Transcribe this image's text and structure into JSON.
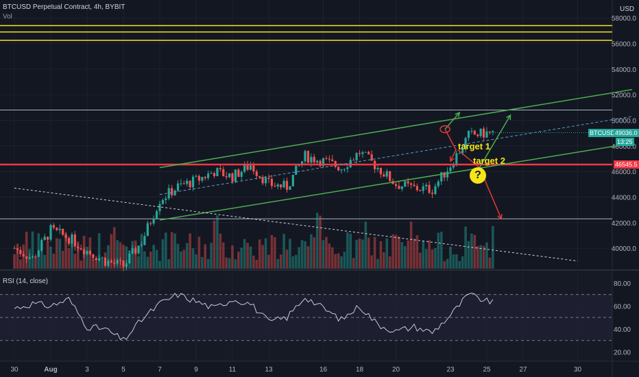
{
  "header": {
    "title": "BTCUSD Perpetual Contract, 4h, BYBIT",
    "volume_label": "Vol",
    "currency": "USD",
    "rsi_label": "RSI (14, close)"
  },
  "price_axis": {
    "ticks": [
      "58000.0",
      "56000.0",
      "54000.0",
      "52000.0",
      "50000.0",
      "48000.0",
      "46000.0",
      "44000.0",
      "42000.0",
      "40000.0"
    ],
    "tick_values": [
      58000,
      56000,
      54000,
      52000,
      50000,
      48000,
      46000,
      44000,
      42000,
      40000
    ],
    "range": [
      38400,
      59400
    ]
  },
  "rsi_axis": {
    "ticks": [
      "80.00",
      "60.00",
      "40.00",
      "20.00"
    ],
    "tick_values": [
      80,
      60,
      40,
      20
    ],
    "range": [
      12,
      90
    ],
    "bands": [
      70,
      50,
      30
    ]
  },
  "time_axis": {
    "ticks": [
      "30",
      "Aug",
      "3",
      "5",
      "7",
      "9",
      "11",
      "13",
      "16",
      "18",
      "20",
      "23",
      "25",
      "27",
      "30"
    ],
    "day_positions": [
      -1,
      1,
      3,
      5,
      7,
      9,
      11,
      13,
      16,
      18,
      20,
      23,
      25,
      27,
      30
    ]
  },
  "badges": {
    "last_symbol": "BTCUSD",
    "last_price": "49036.0",
    "countdown": "13:25",
    "level_price": "46545.5"
  },
  "annotations": {
    "target1": "target 1",
    "target2": "target 2",
    "question": "?"
  },
  "colors": {
    "background": "#131722",
    "up": "#26a69a",
    "down": "#ef5350",
    "channel": "#4caf50",
    "yellow_lines": "#f5e61a",
    "level_red": "#f23645",
    "rsi_line": "#c8cbd3",
    "rsi_band": "#7e57c2"
  },
  "chart_data": {
    "type": "candlestick",
    "title": "BTCUSD Perpetual Contract, 4h, BYBIT",
    "x_unit": "days (Aug 2021)",
    "price_range": [
      38400,
      59400
    ],
    "levels": {
      "resistance_yellow": [
        57400,
        56900,
        56250
      ],
      "horizontal_gray": [
        50800,
        42300
      ],
      "red_level": 46545.5
    },
    "channel": {
      "upper": [
        [
          7,
          46300
        ],
        [
          33,
          52400
        ]
      ],
      "lower": [
        [
          7,
          42200
        ],
        [
          33,
          48200
        ]
      ],
      "mid_dashed": [
        [
          7,
          44200
        ],
        [
          33,
          50300
        ]
      ]
    },
    "trendline_dashed": [
      [
        -1,
        44700
      ],
      [
        30,
        39000
      ]
    ],
    "anchors": [
      {
        "day": -1,
        "price": 40000
      },
      {
        "day": 0,
        "price": 39200
      },
      {
        "day": 1,
        "price": 41400
      },
      {
        "day": 2,
        "price": 40800
      },
      {
        "day": 3,
        "price": 39800
      },
      {
        "day": 4,
        "price": 39000
      },
      {
        "day": 5,
        "price": 38600
      },
      {
        "day": 6,
        "price": 40500
      },
      {
        "day": 7,
        "price": 43800
      },
      {
        "day": 8,
        "price": 44800
      },
      {
        "day": 9,
        "price": 45300
      },
      {
        "day": 10,
        "price": 46000
      },
      {
        "day": 11,
        "price": 45600
      },
      {
        "day": 12,
        "price": 46500
      },
      {
        "day": 13,
        "price": 45000
      },
      {
        "day": 14,
        "price": 44800
      },
      {
        "day": 15,
        "price": 47200
      },
      {
        "day": 16,
        "price": 46800
      },
      {
        "day": 17,
        "price": 46300
      },
      {
        "day": 18,
        "price": 47500
      },
      {
        "day": 19,
        "price": 46300
      },
      {
        "day": 20,
        "price": 45000
      },
      {
        "day": 21,
        "price": 44700
      },
      {
        "day": 22,
        "price": 44600
      },
      {
        "day": 23,
        "price": 46500
      },
      {
        "day": 24,
        "price": 48800
      },
      {
        "day": 25,
        "price": 49000
      }
    ],
    "last_price": 49036.0,
    "projections": [
      {
        "name": "target 1",
        "points": [
          [
            22.7,
            49300
          ],
          [
            23.3,
            47700
          ],
          [
            23.0,
            46800
          ]
        ]
      },
      {
        "name": "target 2",
        "points": [
          [
            23.4,
            47700
          ],
          [
            24.6,
            46300
          ],
          [
            25.8,
            42300
          ]
        ]
      },
      {
        "name": "up-1",
        "points": [
          [
            22.7,
            49300
          ],
          [
            23.5,
            50600
          ]
        ]
      },
      {
        "name": "up-2",
        "points": [
          [
            24.6,
            46300
          ],
          [
            26.3,
            50400
          ]
        ]
      }
    ],
    "rsi": {
      "range": [
        12,
        90
      ],
      "bands": [
        70,
        50,
        30
      ],
      "anchors": [
        {
          "day": -1,
          "value": 58
        },
        {
          "day": 0,
          "value": 62
        },
        {
          "day": 1,
          "value": 60
        },
        {
          "day": 2,
          "value": 66
        },
        {
          "day": 3,
          "value": 42
        },
        {
          "day": 4,
          "value": 40
        },
        {
          "day": 5,
          "value": 30
        },
        {
          "day": 6,
          "value": 48
        },
        {
          "day": 7,
          "value": 62
        },
        {
          "day": 8,
          "value": 70
        },
        {
          "day": 9,
          "value": 64
        },
        {
          "day": 10,
          "value": 58
        },
        {
          "day": 11,
          "value": 66
        },
        {
          "day": 12,
          "value": 62
        },
        {
          "day": 13,
          "value": 46
        },
        {
          "day": 14,
          "value": 50
        },
        {
          "day": 15,
          "value": 68
        },
        {
          "day": 16,
          "value": 58
        },
        {
          "day": 17,
          "value": 48
        },
        {
          "day": 18,
          "value": 60
        },
        {
          "day": 19,
          "value": 44
        },
        {
          "day": 20,
          "value": 38
        },
        {
          "day": 21,
          "value": 42
        },
        {
          "day": 22,
          "value": 37
        },
        {
          "day": 23,
          "value": 52
        },
        {
          "day": 24,
          "value": 70
        },
        {
          "day": 25,
          "value": 64
        }
      ]
    }
  }
}
